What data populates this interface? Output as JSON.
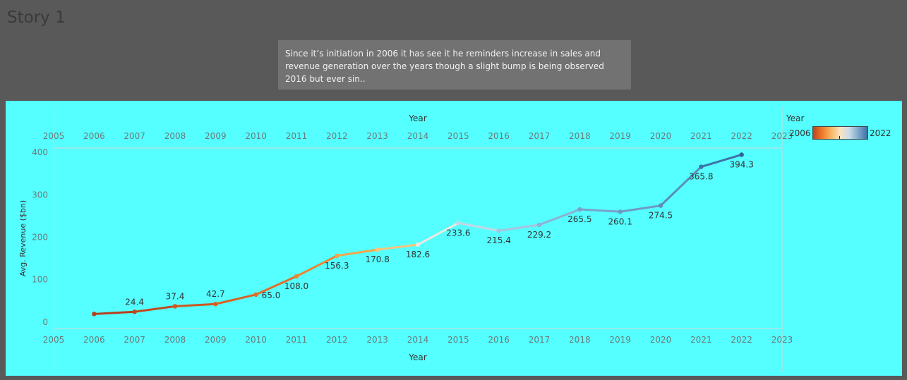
{
  "page": {
    "story_title": "Story 1",
    "caption": "Since it’s initiation in 2006 it has see it he reminders increase in sales and revenue generation over the years though a slight bump is being observed 2016 but ever sin.."
  },
  "legend": {
    "title": "Year",
    "min_label": "2006",
    "max_label": "2022",
    "colors": [
      "#c0421c",
      "#ef7a2a",
      "#f7b766",
      "#fbe3c2",
      "#c8dbe8",
      "#7fa7cc",
      "#3d6fa6"
    ]
  },
  "chart_data": {
    "type": "line",
    "xlabel_top": "Year",
    "xlabel_bottom": "Year",
    "ylabel": "Avg. Revenue ($bn)",
    "xlim": [
      2005,
      2023
    ],
    "ylim": [
      -15,
      410
    ],
    "x_ticks": [
      2005,
      2006,
      2007,
      2008,
      2009,
      2010,
      2011,
      2012,
      2013,
      2014,
      2015,
      2016,
      2017,
      2018,
      2019,
      2020,
      2021,
      2022,
      2023
    ],
    "y_ticks": [
      0,
      100,
      200,
      300,
      400
    ],
    "series": [
      {
        "x": [
          2006,
          2007,
          2008,
          2009,
          2010,
          2011,
          2012,
          2013,
          2014,
          2015,
          2016,
          2017,
          2018,
          2019,
          2020,
          2021,
          2022
        ],
        "values": [
          19.3,
          24.4,
          37.4,
          42.7,
          65.0,
          108.0,
          156.3,
          170.8,
          182.6,
          233.6,
          215.4,
          229.2,
          265.5,
          260.1,
          274.5,
          365.8,
          394.3
        ],
        "labels": [
          null,
          "24.4",
          "37.4",
          "42.7",
          "65.0",
          "108.0",
          "156.3",
          "170.8",
          "182.6",
          "233.6",
          "215.4",
          "229.2",
          "265.5",
          "260.1",
          "274.5",
          "365.8",
          "394.3"
        ],
        "label_positions": [
          "none",
          "above",
          "above",
          "above",
          "right",
          "below",
          "below",
          "below",
          "below",
          "below",
          "below",
          "below",
          "below",
          "below",
          "below",
          "below",
          "below"
        ]
      }
    ],
    "colors": [
      "#b6401c",
      "#c2481d",
      "#cf5620",
      "#d96224",
      "#e26f27",
      "#ec8630",
      "#f6a54a",
      "#f9c47e",
      "#ece8e0",
      "#c3d6e6",
      "#a8c3dd",
      "#8db1d4",
      "#7aa2c9",
      "#6f9ac3",
      "#5e8dba",
      "#3f73a8",
      "#2f609a"
    ],
    "grid": false
  }
}
